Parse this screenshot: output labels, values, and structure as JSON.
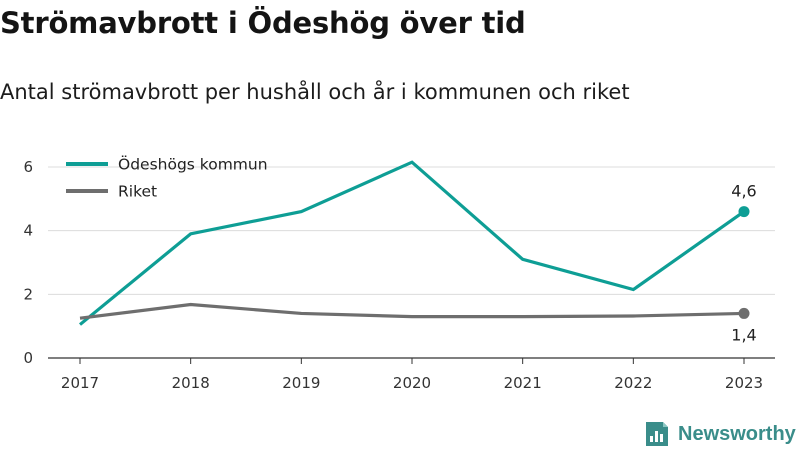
{
  "title": "Strömavbrott i Ödeshög över tid",
  "subtitle": "Antal strömavbrott per hushåll och år i kommunen och riket",
  "brand": {
    "name": "Newsworthy",
    "logo_icon": "bar-chart-doc-icon",
    "color": "#3a8d8a"
  },
  "chart_data": {
    "type": "line",
    "title": "Strömavbrott i Ödeshög över tid",
    "subtitle": "Antal strömavbrott per hushåll och år i kommunen och riket",
    "xlabel": "",
    "ylabel": "",
    "x": [
      "2017",
      "2018",
      "2019",
      "2020",
      "2021",
      "2022",
      "2023"
    ],
    "ylim": [
      0,
      6.5
    ],
    "yticks": [
      0,
      2,
      4,
      6
    ],
    "grid": true,
    "legend_position": "top-left",
    "series": [
      {
        "name": "Ödeshögs kommun",
        "color": "#0e9e95",
        "values": [
          1.05,
          3.9,
          4.6,
          6.15,
          3.1,
          2.15,
          4.6
        ],
        "end_label": "4,6"
      },
      {
        "name": "Riket",
        "color": "#6e6e6e",
        "values": [
          1.25,
          1.68,
          1.4,
          1.3,
          1.3,
          1.32,
          1.4
        ],
        "end_label": "1,4"
      }
    ]
  }
}
